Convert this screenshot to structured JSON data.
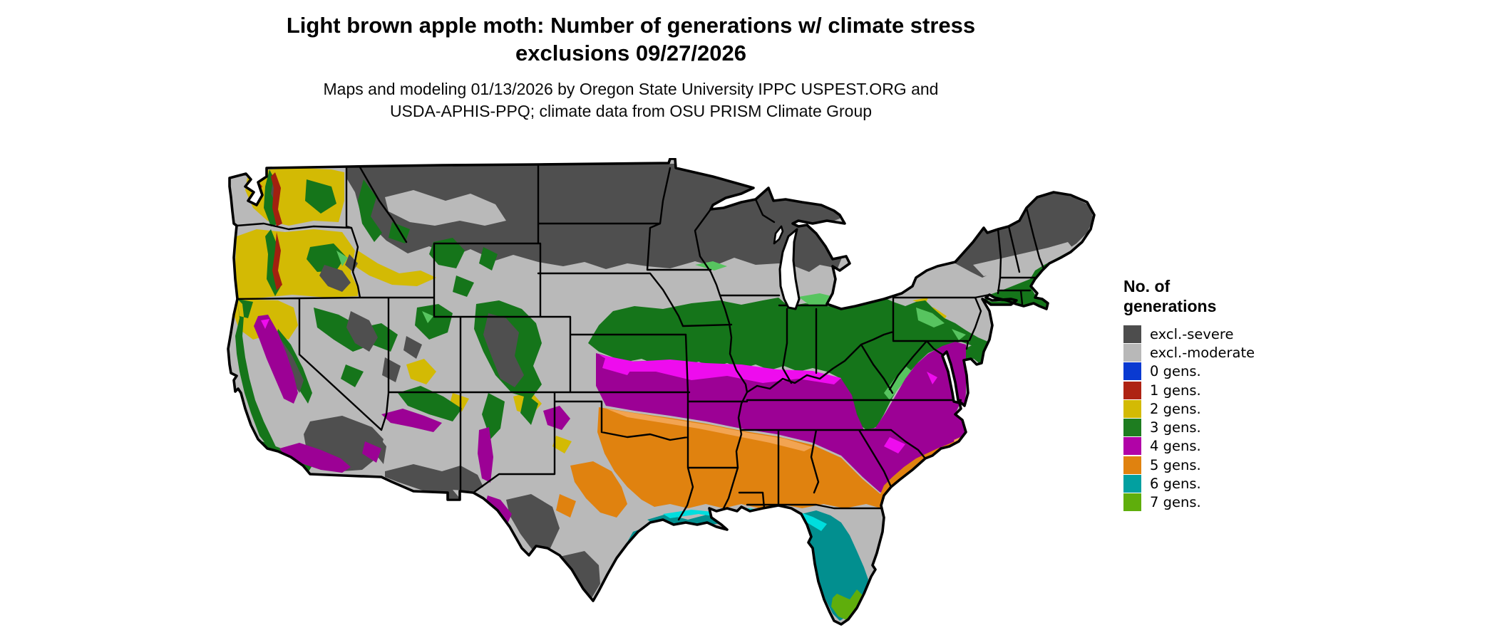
{
  "title": {
    "line1": "Light brown apple moth: Number of generations w/ climate stress",
    "line2": "exclusions 09/27/2026"
  },
  "subtitle": {
    "line1": "Maps and modeling 01/13/2026 by Oregon State University IPPC USPEST.ORG and",
    "line2": "USDA-APHIS-PPQ; climate data from OSU PRISM Climate Group"
  },
  "legend": {
    "title_line1": "No. of",
    "title_line2": "generations",
    "items": [
      {
        "label": "excl.-severe",
        "color": "#4d4d4d"
      },
      {
        "label": "excl.-moderate",
        "color": "#b8b8b8"
      },
      {
        "label": "0 gens.",
        "color": "#0a3ad1"
      },
      {
        "label": "1 gens.",
        "color": "#ae2313"
      },
      {
        "label": "2 gens.",
        "color": "#d3ba04"
      },
      {
        "label": "3 gens.",
        "color": "#1e7d20"
      },
      {
        "label": "4 gens.",
        "color": "#b103a7"
      },
      {
        "label": "5 gens.",
        "color": "#e0820f"
      },
      {
        "label": "6 gens.",
        "color": "#02a0a0"
      },
      {
        "label": "7 gens.",
        "color": "#5fae0c"
      }
    ]
  },
  "map": {
    "region": "Contiguous United States",
    "kind": "raster classification of light brown apple moth generations with climate stress exclusions",
    "palette": {
      "severe": "#4f4f4f",
      "moderate": "#b9b9b9",
      "gold": "#d3ba04",
      "red": "#a2200f",
      "green": "#15751a",
      "lightgreen": "#57c45f",
      "magenta": "#9c0195",
      "brightmagenta": "#ee0cee",
      "orange": "#e0820f",
      "lightorange": "#f2a452",
      "teal": "#028f8f",
      "cyan": "#00dede",
      "chartreuse": "#5fae0c",
      "water": "#ffffff",
      "border": "#000000"
    }
  }
}
